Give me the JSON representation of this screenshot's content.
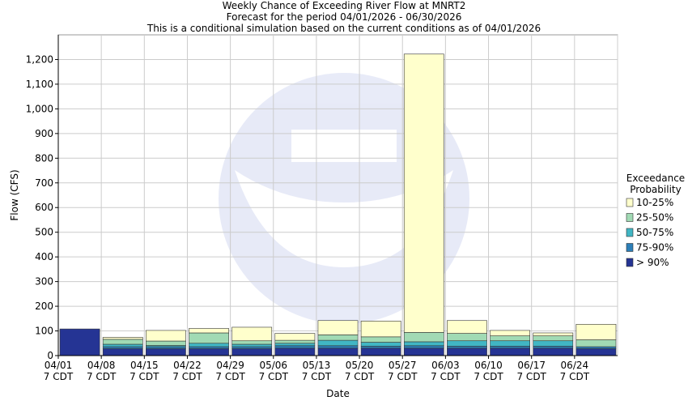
{
  "chart_data": {
    "type": "bar",
    "stacked": true,
    "title": "Weekly Chance of Exceeding River Flow at MNRT2",
    "subtitle": "Forecast for the period 04/01/2026 - 06/30/2026",
    "subtitle2": "This is a conditional simulation based on the current conditions as of 04/01/2026",
    "xlabel": "Date",
    "ylabel": "Flow (CFS)",
    "ylim": [
      0,
      1300
    ],
    "yticks": [
      0,
      100,
      200,
      300,
      400,
      500,
      600,
      700,
      800,
      900,
      1000,
      1100,
      1200
    ],
    "ytick_labels": [
      "0",
      "100",
      "200",
      "300",
      "400",
      "500",
      "600",
      "700",
      "800",
      "900",
      "1,000",
      "1,100",
      "1,200"
    ],
    "grid": true,
    "x_ticks": [
      {
        "date": "04/01",
        "time": "7 CDT"
      },
      {
        "date": "04/08",
        "time": "7 CDT"
      },
      {
        "date": "04/15",
        "time": "7 CDT"
      },
      {
        "date": "04/22",
        "time": "7 CDT"
      },
      {
        "date": "04/29",
        "time": "7 CDT"
      },
      {
        "date": "05/06",
        "time": "7 CDT"
      },
      {
        "date": "05/13",
        "time": "7 CDT"
      },
      {
        "date": "05/20",
        "time": "7 CDT"
      },
      {
        "date": "05/27",
        "time": "7 CDT"
      },
      {
        "date": "06/03",
        "time": "7 CDT"
      },
      {
        "date": "06/10",
        "time": "7 CDT"
      },
      {
        "date": "06/17",
        "time": "7 CDT"
      },
      {
        "date": "06/24",
        "time": "7 CDT"
      }
    ],
    "legend": {
      "title_line1": "Exceedance",
      "title_line2": "Probability",
      "placement": "right",
      "entries": [
        {
          "label": "10-25%",
          "color": "#ffffcc"
        },
        {
          "label": "25-50%",
          "color": "#a1dab4"
        },
        {
          "label": "50-75%",
          "color": "#41b6c4"
        },
        {
          "label": "75-90%",
          "color": "#2c7fb8"
        },
        {
          "label": "> 90%",
          "color": "#253494"
        }
      ]
    },
    "series": [
      {
        "name": "> 90%",
        "color": "#253494",
        "values": [
          108,
          28,
          28,
          28,
          28,
          30,
          30,
          30,
          30,
          30,
          30,
          30,
          28
        ]
      },
      {
        "name": "75-90%",
        "color": "#2c7fb8",
        "values": [
          0,
          8,
          8,
          8,
          8,
          10,
          10,
          8,
          10,
          8,
          8,
          8,
          8
        ]
      },
      {
        "name": "50-75%",
        "color": "#41b6c4",
        "values": [
          0,
          10,
          5,
          14,
          10,
          10,
          22,
          16,
          16,
          22,
          22,
          22,
          0
        ]
      },
      {
        "name": "25-50%",
        "color": "#a1dab4",
        "values": [
          0,
          20,
          18,
          42,
          14,
          12,
          22,
          22,
          38,
          30,
          20,
          20,
          28
        ]
      },
      {
        "name": "10-25%",
        "color": "#ffffcc",
        "values": [
          0,
          8,
          43,
          18,
          55,
          28,
          58,
          64,
          1128,
          52,
          22,
          12,
          63
        ]
      }
    ]
  }
}
